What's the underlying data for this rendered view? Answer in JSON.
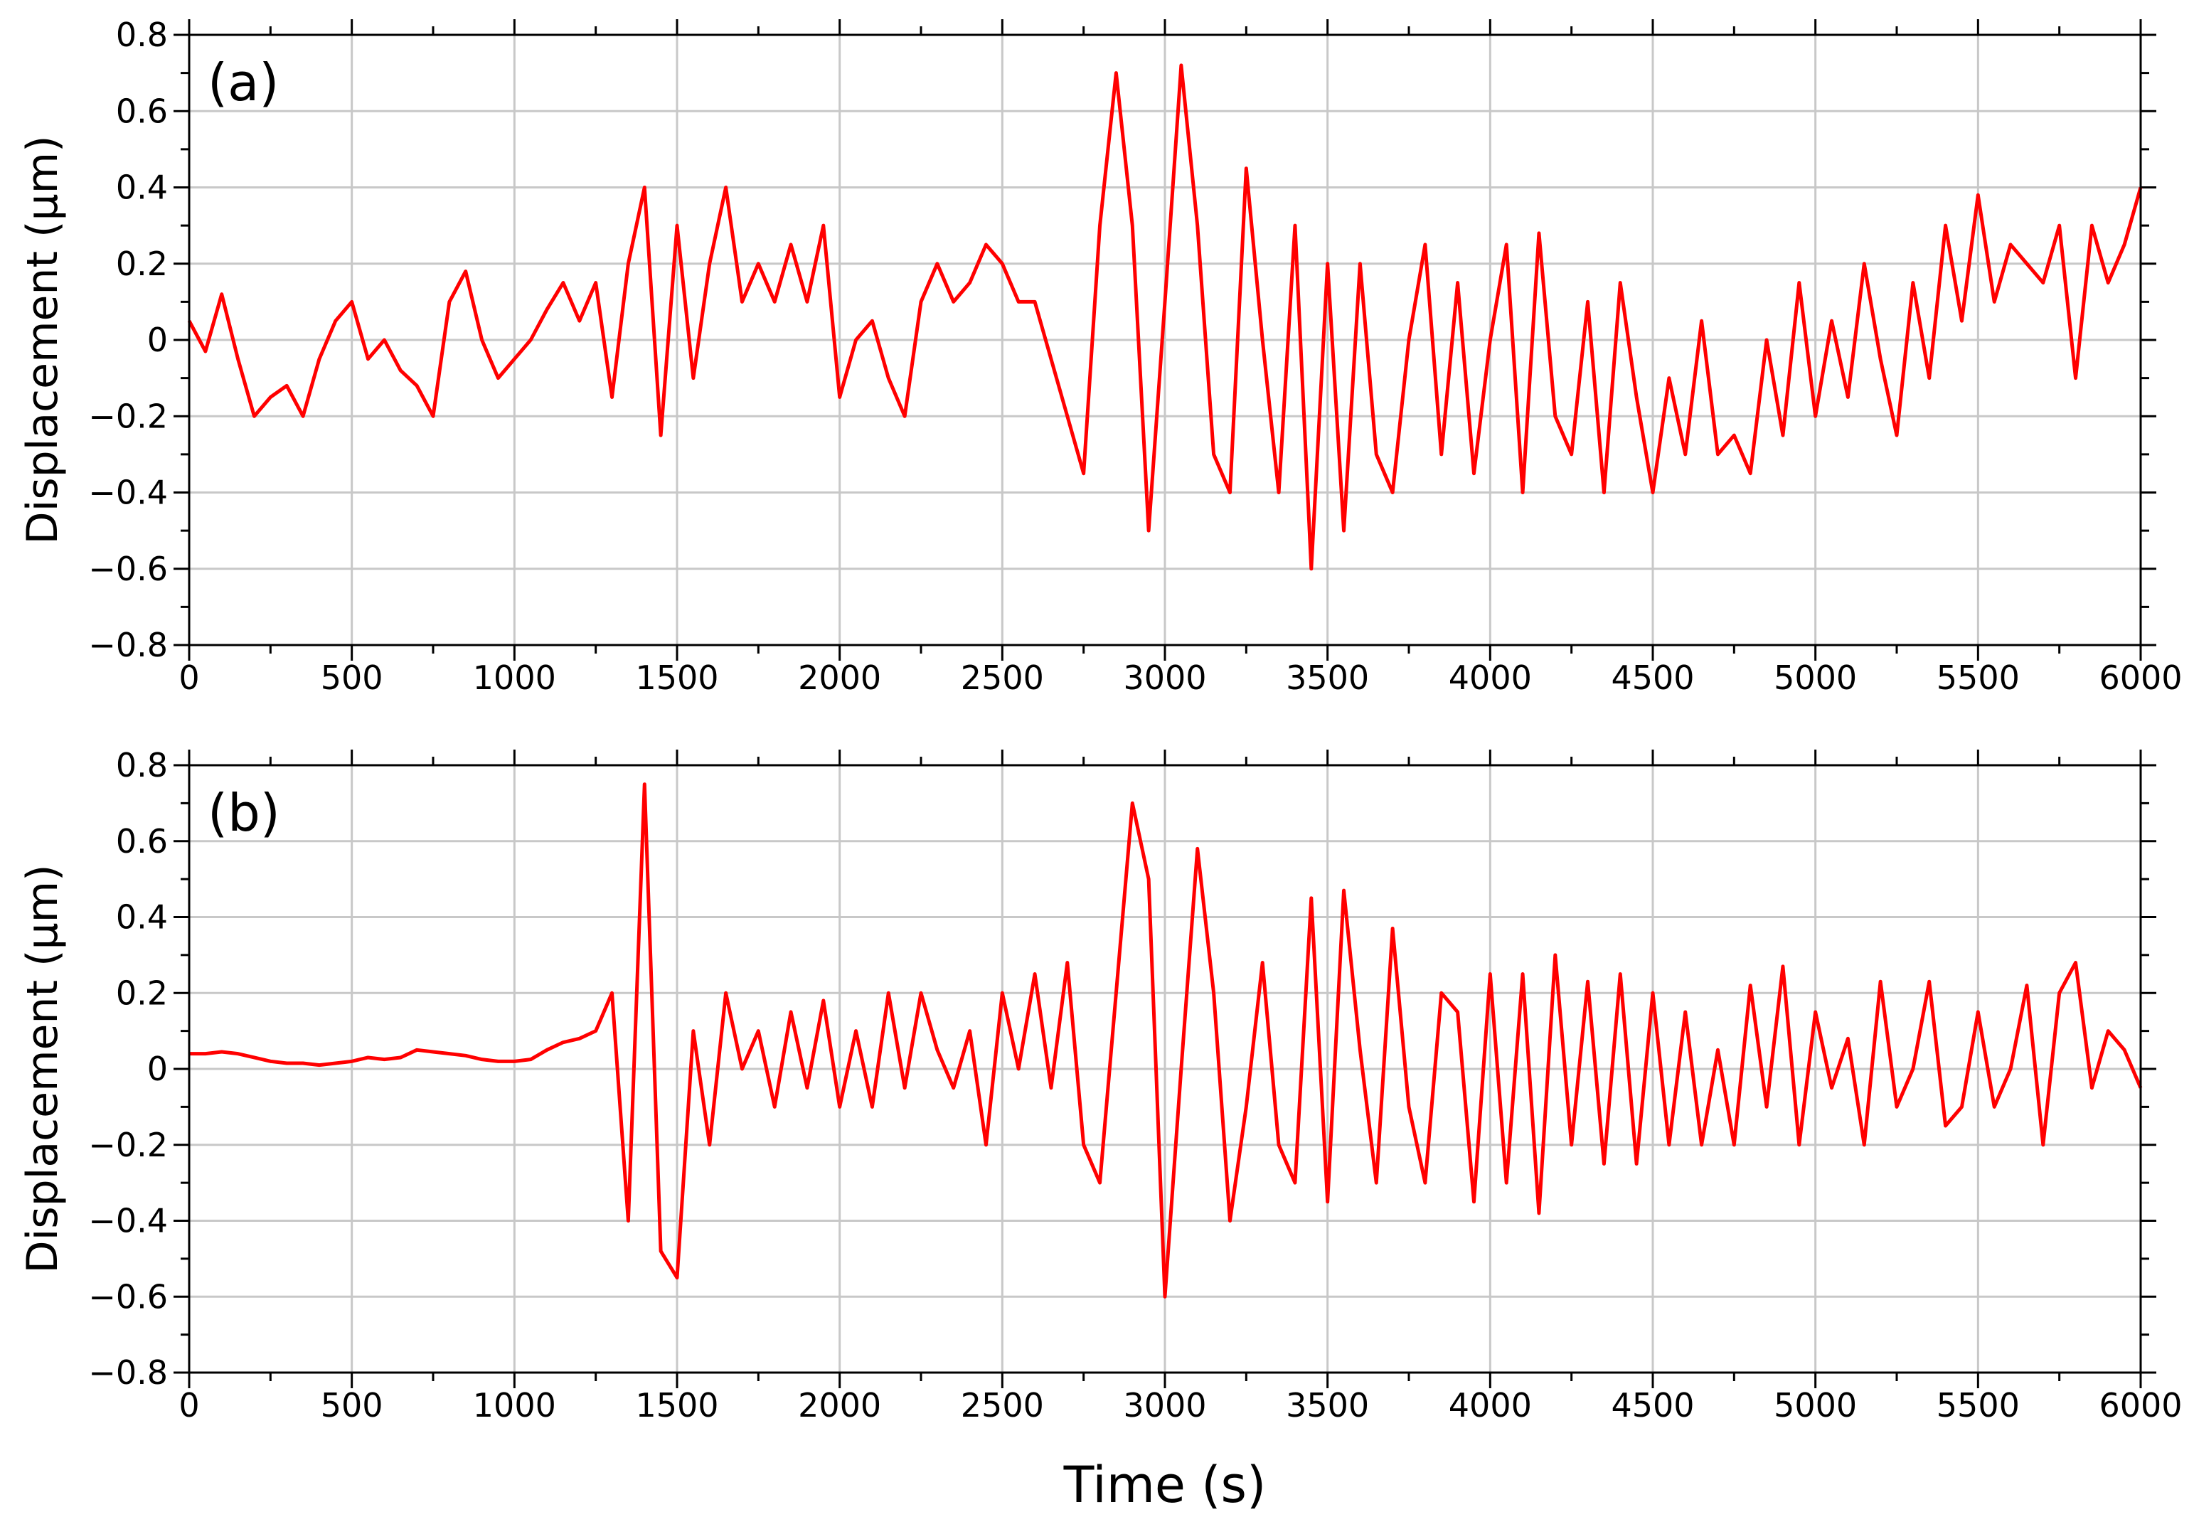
{
  "chart_data": [
    {
      "type": "line",
      "label": "(a)",
      "ylabel": "Displacement (µm)",
      "x": [
        0,
        50,
        100,
        150,
        200,
        250,
        300,
        350,
        400,
        450,
        500,
        550,
        600,
        650,
        700,
        750,
        800,
        850,
        900,
        950,
        1000,
        1050,
        1100,
        1150,
        1200,
        1250,
        1300,
        1350,
        1400,
        1450,
        1500,
        1550,
        1600,
        1650,
        1700,
        1750,
        1800,
        1850,
        1900,
        1950,
        2000,
        2050,
        2100,
        2150,
        2200,
        2250,
        2300,
        2350,
        2400,
        2450,
        2500,
        2550,
        2600,
        2650,
        2700,
        2750,
        2800,
        2850,
        2900,
        2950,
        3000,
        3050,
        3100,
        3150,
        3200,
        3250,
        3300,
        3350,
        3400,
        3450,
        3500,
        3550,
        3600,
        3650,
        3700,
        3750,
        3800,
        3850,
        3900,
        3950,
        4000,
        4050,
        4100,
        4150,
        4200,
        4250,
        4300,
        4350,
        4400,
        4450,
        4500,
        4550,
        4600,
        4650,
        4700,
        4750,
        4800,
        4850,
        4900,
        4950,
        5000,
        5050,
        5100,
        5150,
        5200,
        5250,
        5300,
        5350,
        5400,
        5450,
        5500,
        5550,
        5600,
        5650,
        5700,
        5750,
        5800,
        5850,
        5900,
        5950,
        6000
      ],
      "series": [
        {
          "color": "#ff0000",
          "values": [
            0.05,
            -0.03,
            0.12,
            -0.05,
            -0.2,
            -0.15,
            -0.12,
            -0.2,
            -0.05,
            0.05,
            0.1,
            -0.05,
            0.0,
            -0.08,
            -0.12,
            -0.2,
            0.1,
            0.18,
            0.0,
            -0.1,
            -0.05,
            0.0,
            0.08,
            0.15,
            0.05,
            0.15,
            -0.15,
            0.2,
            0.4,
            -0.25,
            0.3,
            -0.1,
            0.2,
            0.4,
            0.1,
            0.2,
            0.1,
            0.25,
            0.1,
            0.3,
            -0.15,
            0.0,
            0.05,
            -0.1,
            -0.2,
            0.1,
            0.2,
            0.1,
            0.15,
            0.25,
            0.2,
            0.1,
            0.1,
            -0.05,
            -0.2,
            -0.35,
            0.3,
            0.7,
            0.3,
            -0.5,
            0.1,
            0.72,
            0.3,
            -0.3,
            -0.4,
            0.45,
            0.0,
            -0.4,
            0.3,
            -0.6,
            0.2,
            -0.5,
            0.2,
            -0.3,
            -0.4,
            0.0,
            0.25,
            -0.3,
            0.15,
            -0.35,
            0.0,
            0.25,
            -0.4,
            0.28,
            -0.2,
            -0.3,
            0.1,
            -0.4,
            0.15,
            -0.15,
            -0.4,
            -0.1,
            -0.3,
            0.05,
            -0.3,
            -0.25,
            -0.35,
            0.0,
            -0.25,
            0.15,
            -0.2,
            0.05,
            -0.15,
            0.2,
            -0.05,
            -0.25,
            0.15,
            -0.1,
            0.3,
            0.05,
            0.38,
            0.1,
            0.25,
            0.2,
            0.15,
            0.3,
            -0.1,
            0.3,
            0.15,
            0.25,
            0.4
          ]
        }
      ],
      "xlim": [
        0,
        6000
      ],
      "xticks": [
        0,
        500,
        1000,
        1500,
        2000,
        2500,
        3000,
        3500,
        4000,
        4500,
        5000,
        5500,
        6000
      ],
      "ylim": [
        -0.8,
        0.8
      ],
      "yticks": [
        {
          "value": -0.8,
          "label": "−0.8"
        },
        {
          "value": -0.6,
          "label": "−0.6"
        },
        {
          "value": -0.4,
          "label": "−0.4"
        },
        {
          "value": -0.2,
          "label": "−0.2"
        },
        0,
        0.2,
        0.4,
        0.6,
        0.8
      ],
      "grid": true
    },
    {
      "type": "line",
      "label": "(b)",
      "ylabel": "Displacement (µm)",
      "xlabel": "Time (s)",
      "x": [
        0,
        50,
        100,
        150,
        200,
        250,
        300,
        350,
        400,
        450,
        500,
        550,
        600,
        650,
        700,
        750,
        800,
        850,
        900,
        950,
        1000,
        1050,
        1100,
        1150,
        1200,
        1250,
        1300,
        1350,
        1400,
        1450,
        1500,
        1550,
        1600,
        1650,
        1700,
        1750,
        1800,
        1850,
        1900,
        1950,
        2000,
        2050,
        2100,
        2150,
        2200,
        2250,
        2300,
        2350,
        2400,
        2450,
        2500,
        2550,
        2600,
        2650,
        2700,
        2750,
        2800,
        2850,
        2900,
        2950,
        3000,
        3050,
        3100,
        3150,
        3200,
        3250,
        3300,
        3350,
        3400,
        3450,
        3500,
        3550,
        3600,
        3650,
        3700,
        3750,
        3800,
        3850,
        3900,
        3950,
        4000,
        4050,
        4100,
        4150,
        4200,
        4250,
        4300,
        4350,
        4400,
        4450,
        4500,
        4550,
        4600,
        4650,
        4700,
        4750,
        4800,
        4850,
        4900,
        4950,
        5000,
        5050,
        5100,
        5150,
        5200,
        5250,
        5300,
        5350,
        5400,
        5450,
        5500,
        5550,
        5600,
        5650,
        5700,
        5750,
        5800,
        5850,
        5900,
        5950,
        6000
      ],
      "series": [
        {
          "color": "#ff0000",
          "values": [
            0.04,
            0.04,
            0.045,
            0.04,
            0.03,
            0.02,
            0.015,
            0.015,
            0.01,
            0.015,
            0.02,
            0.03,
            0.025,
            0.03,
            0.05,
            0.045,
            0.04,
            0.035,
            0.025,
            0.02,
            0.02,
            0.025,
            0.05,
            0.07,
            0.08,
            0.1,
            0.2,
            -0.4,
            0.75,
            -0.48,
            -0.55,
            0.1,
            -0.2,
            0.2,
            0.0,
            0.1,
            -0.1,
            0.15,
            -0.05,
            0.18,
            -0.1,
            0.1,
            -0.1,
            0.2,
            -0.05,
            0.2,
            0.05,
            -0.05,
            0.1,
            -0.2,
            0.2,
            0.0,
            0.25,
            -0.05,
            0.28,
            -0.2,
            -0.3,
            0.2,
            0.7,
            0.5,
            -0.6,
            0.0,
            0.58,
            0.2,
            -0.4,
            -0.1,
            0.28,
            -0.2,
            -0.3,
            0.45,
            -0.35,
            0.47,
            0.05,
            -0.3,
            0.37,
            -0.1,
            -0.3,
            0.2,
            0.15,
            -0.35,
            0.25,
            -0.3,
            0.25,
            -0.38,
            0.3,
            -0.2,
            0.23,
            -0.25,
            0.25,
            -0.25,
            0.2,
            -0.2,
            0.15,
            -0.2,
            0.05,
            -0.2,
            0.22,
            -0.1,
            0.27,
            -0.2,
            0.15,
            -0.05,
            0.08,
            -0.2,
            0.23,
            -0.1,
            0.0,
            0.23,
            -0.15,
            -0.1,
            0.15,
            -0.1,
            0.0,
            0.22,
            -0.2,
            0.2,
            0.28,
            -0.05,
            0.1,
            0.05,
            -0.05
          ]
        }
      ],
      "xlim": [
        0,
        6000
      ],
      "xticks": [
        0,
        500,
        1000,
        1500,
        2000,
        2500,
        3000,
        3500,
        4000,
        4500,
        5000,
        5500,
        6000
      ],
      "ylim": [
        -0.8,
        0.8
      ],
      "yticks": [
        {
          "value": -0.8,
          "label": "−0.8"
        },
        {
          "value": -0.6,
          "label": "−0.6"
        },
        {
          "value": -0.4,
          "label": "−0.4"
        },
        {
          "value": -0.2,
          "label": "−0.2"
        },
        0,
        0.2,
        0.4,
        0.6,
        0.8
      ],
      "grid": true
    }
  ]
}
